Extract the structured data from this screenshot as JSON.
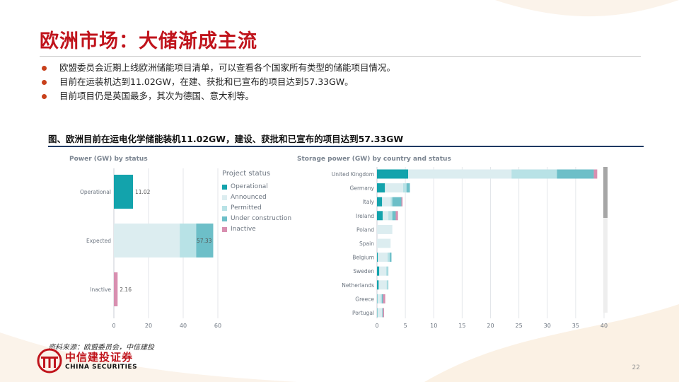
{
  "slide": {
    "title": "欧洲市场：大储渐成主流",
    "bullets": [
      "欧盟委员会近期上线欧洲储能项目清单，可以查看各个国家所有类型的储能项目情况。",
      "目前在运装机达到11.02GW，在建、获批和已宣布的项目达到57.33GW。",
      "目前项目仍是英国最多，其次为德国、意大利等。"
    ],
    "figure_title": "图、欧洲目前在运电化学储能装机11.02GW，建设、获批和已宣布的项目达到57.33GW",
    "source": "资料来源：欧盟委员会，中信建投",
    "brand_cn": "中信建投证券",
    "brand_en": "CHINA SECURITIES",
    "page_number": "22"
  },
  "colors": {
    "title_red": "#c0141c",
    "bullet": "#c8401b",
    "operational": "#13a3ac",
    "announced": "#dcedf0",
    "permitted": "#b8e2e6",
    "under_construction": "#6dbfc8",
    "inactive": "#d88fb0"
  },
  "chart_data": [
    {
      "type": "bar",
      "orientation": "horizontal",
      "stacked": true,
      "title": "Power (GW) by status",
      "categories": [
        "Operational",
        "Expected",
        "Inactive"
      ],
      "series": [
        {
          "name": "Operational",
          "values": [
            11.02,
            0,
            0
          ]
        },
        {
          "name": "Announced",
          "values": [
            0,
            38.0,
            0
          ]
        },
        {
          "name": "Permitted",
          "values": [
            0,
            9.5,
            0
          ]
        },
        {
          "name": "Under construction",
          "values": [
            0,
            9.83,
            0
          ]
        },
        {
          "name": "Inactive",
          "values": [
            0,
            0,
            2.16
          ]
        }
      ],
      "data_labels": [
        "11.02",
        "57.33",
        "2.16"
      ],
      "xlim": [
        0,
        60
      ],
      "xticks": [
        "0",
        "20",
        "40",
        "60"
      ],
      "legend_title": "Project status",
      "legend": [
        "Operational",
        "Announced",
        "Permitted",
        "Under construction",
        "Inactive"
      ]
    },
    {
      "type": "bar",
      "orientation": "horizontal",
      "stacked": true,
      "title": "Storage power (GW) by country and status",
      "categories": [
        "United Kingdom",
        "Germany",
        "Italy",
        "Ireland",
        "Poland",
        "Spain",
        "Belgium",
        "Sweden",
        "Netherlands",
        "Greece",
        "Portugal"
      ],
      "series": [
        {
          "name": "Operational",
          "values": [
            5.5,
            1.4,
            0.9,
            1.0,
            0,
            0,
            0.15,
            0.4,
            0.3,
            0.05,
            0.05
          ]
        },
        {
          "name": "Announced",
          "values": [
            18.2,
            3.2,
            1.5,
            1.0,
            2.7,
            2.4,
            1.7,
            1.2,
            1.4,
            0.6,
            0.8
          ]
        },
        {
          "name": "Permitted",
          "values": [
            8.0,
            0.6,
            0.3,
            0.7,
            0,
            0,
            0.4,
            0.3,
            0.2,
            0.2,
            0.1
          ]
        },
        {
          "name": "Under construction",
          "values": [
            6.5,
            0.6,
            1.6,
            0.6,
            0,
            0,
            0.3,
            0.1,
            0.1,
            0.2,
            0.1
          ]
        },
        {
          "name": "Inactive",
          "values": [
            0.6,
            0,
            0.2,
            0.4,
            0,
            0,
            0,
            0,
            0,
            0.4,
            0.2
          ]
        }
      ],
      "xlim": [
        0,
        40
      ],
      "xticks": [
        "0",
        "5",
        "10",
        "15",
        "20",
        "25",
        "30",
        "35",
        "40"
      ]
    }
  ]
}
